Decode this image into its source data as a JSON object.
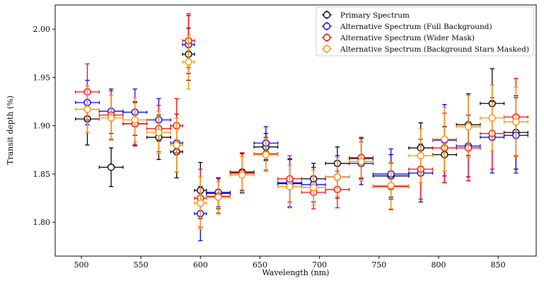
{
  "chart_data": {
    "type": "scatter",
    "title": "",
    "xlabel": "Wavelength (nm)",
    "ylabel": "Transit depth (%)",
    "xlim": [
      478,
      882
    ],
    "ylim": [
      1.765,
      2.025
    ],
    "xticks": [
      500,
      550,
      600,
      650,
      700,
      750,
      800,
      850
    ],
    "yticks": [
      1.8,
      1.85,
      1.9,
      1.95,
      2.0
    ],
    "ytick_format": 2,
    "legend_position": "top-right",
    "series": [
      {
        "name": "Primary Spectrum",
        "color": "#000000",
        "x": [
          505,
          525,
          545,
          565,
          580,
          590,
          600,
          615,
          635,
          655,
          675,
          695,
          715,
          735,
          760,
          785,
          805,
          825,
          845,
          865
        ],
        "xerr": [
          10,
          10,
          10,
          10,
          5,
          5,
          5,
          10,
          10,
          10,
          10,
          10,
          10,
          10,
          15,
          10,
          10,
          10,
          10,
          10
        ],
        "y": [
          1.907,
          1.857,
          1.902,
          1.888,
          1.873,
          1.974,
          1.833,
          1.83,
          1.852,
          1.878,
          1.84,
          1.845,
          1.861,
          1.866,
          1.848,
          1.877,
          1.87,
          1.901,
          1.923,
          1.893
        ],
        "yerr": [
          0.027,
          0.02,
          0.022,
          0.023,
          0.027,
          0.027,
          0.029,
          0.016,
          0.019,
          0.014,
          0.025,
          0.016,
          0.017,
          0.021,
          0.022,
          0.026,
          0.029,
          0.032,
          0.036,
          0.038
        ]
      },
      {
        "name": "Alternative Spectrum (Full Background)",
        "color": "#0000ff",
        "x": [
          505,
          525,
          545,
          565,
          580,
          590,
          600,
          615,
          635,
          655,
          675,
          695,
          715,
          735,
          760,
          785,
          805,
          825,
          845,
          865
        ],
        "xerr": [
          10,
          10,
          10,
          10,
          5,
          5,
          5,
          10,
          10,
          10,
          10,
          10,
          10,
          10,
          15,
          10,
          10,
          10,
          10,
          10
        ],
        "y": [
          1.924,
          1.915,
          1.914,
          1.906,
          1.882,
          1.984,
          1.809,
          1.831,
          1.851,
          1.882,
          1.841,
          1.839,
          1.847,
          1.861,
          1.85,
          1.851,
          1.885,
          1.879,
          1.888,
          1.89
        ],
        "yerr": [
          0.023,
          0.023,
          0.024,
          0.022,
          0.03,
          0.03,
          0.028,
          0.015,
          0.02,
          0.017,
          0.025,
          0.018,
          0.022,
          0.022,
          0.026,
          0.03,
          0.037,
          0.032,
          0.037,
          0.039
        ]
      },
      {
        "name": "Alternative Spectrum (Wider Mask)",
        "color": "#ff0000",
        "x": [
          505,
          525,
          545,
          565,
          580,
          590,
          600,
          615,
          635,
          655,
          675,
          695,
          715,
          735,
          760,
          785,
          805,
          825,
          845,
          865
        ],
        "xerr": [
          10,
          10,
          10,
          10,
          5,
          5,
          5,
          10,
          10,
          10,
          10,
          10,
          10,
          10,
          15,
          10,
          10,
          10,
          10,
          10
        ],
        "y": [
          1.935,
          1.911,
          1.902,
          1.897,
          1.9,
          1.988,
          1.825,
          1.827,
          1.851,
          1.871,
          1.845,
          1.831,
          1.834,
          1.867,
          1.837,
          1.855,
          1.877,
          1.877,
          1.892,
          1.909
        ],
        "yerr": [
          0.029,
          0.025,
          0.023,
          0.024,
          0.028,
          0.028,
          0.03,
          0.018,
          0.021,
          0.017,
          0.024,
          0.017,
          0.019,
          0.021,
          0.024,
          0.031,
          0.036,
          0.034,
          0.037,
          0.04
        ]
      },
      {
        "name": "Alternative Spectrum (Background Stars Masked)",
        "color": "#ff8c00",
        "x": [
          505,
          525,
          545,
          565,
          580,
          590,
          600,
          615,
          635,
          655,
          675,
          695,
          715,
          735,
          760,
          785,
          805,
          825,
          845,
          865
        ],
        "xerr": [
          10,
          10,
          10,
          10,
          5,
          5,
          5,
          10,
          10,
          10,
          10,
          10,
          10,
          10,
          15,
          10,
          10,
          10,
          10,
          10
        ],
        "y": [
          1.917,
          1.908,
          1.906,
          1.893,
          1.88,
          1.966,
          1.82,
          1.826,
          1.849,
          1.87,
          1.837,
          1.836,
          1.847,
          1.863,
          1.838,
          1.869,
          1.886,
          1.899,
          1.908,
          1.904
        ],
        "yerr": [
          0.024,
          0.023,
          0.023,
          0.022,
          0.028,
          0.028,
          0.027,
          0.016,
          0.019,
          0.017,
          0.022,
          0.018,
          0.02,
          0.02,
          0.024,
          0.028,
          0.033,
          0.032,
          0.034,
          0.036
        ]
      }
    ]
  }
}
